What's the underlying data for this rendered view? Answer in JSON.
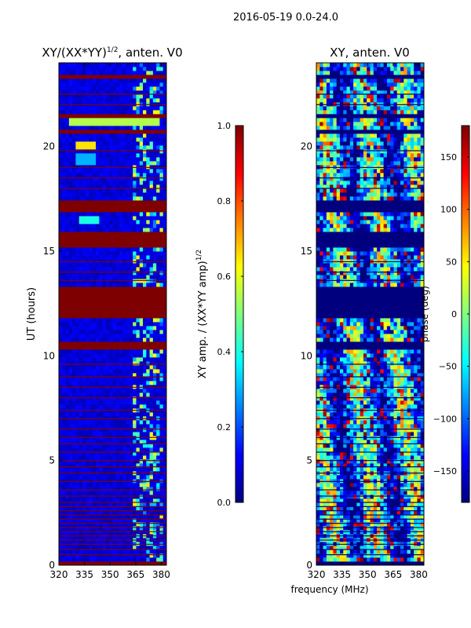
{
  "suptitle": "2016-05-19 0.0-24.0",
  "colormap": {
    "stops": [
      "#00007f",
      "#0000ff",
      "#007fff",
      "#00ffff",
      "#7fff7f",
      "#ffff00",
      "#ff7f00",
      "#ff0000",
      "#7f0000"
    ]
  },
  "chart_data": [
    {
      "type": "heatmap",
      "title": "XY/(XX*YY)",
      "title_sup": "1/2",
      "title_suffix": ", anten. V0",
      "xlabel": "",
      "ylabel": "UT (hours)",
      "xlim": [
        320,
        383
      ],
      "ylim": [
        0,
        24
      ],
      "xticks": [
        320,
        335,
        350,
        365,
        380
      ],
      "yticks": [
        0,
        5,
        10,
        15,
        20
      ],
      "colorbar": {
        "label": "XY amp. / (XX*YY amp)",
        "label_sup": "1/2",
        "range": [
          0.0,
          1.0
        ],
        "ticks": [
          "0.0",
          "0.2",
          "0.4",
          "0.6",
          "0.8",
          "1.0"
        ],
        "tick_values": [
          0.0,
          0.2,
          0.4,
          0.6,
          0.8,
          1.0
        ]
      },
      "dominant_value": 0.05,
      "flagged_value": 1.0,
      "flagged_time_ranges_hours": [
        [
          0.0,
          0.25
        ],
        [
          10.3,
          10.75
        ],
        [
          11.8,
          13.4
        ],
        [
          15.2,
          15.9
        ],
        [
          16.8,
          17.5
        ],
        [
          20.6,
          20.9
        ],
        [
          21.3,
          21.6
        ],
        [
          22.8,
          22.95
        ],
        [
          23.2,
          23.5
        ]
      ],
      "thin_flag_lines_hours": [
        0.5,
        0.75,
        1.0,
        1.2,
        1.4,
        1.6,
        1.8,
        2.0,
        2.2,
        2.4,
        2.6,
        2.8,
        3.0,
        3.3,
        3.6,
        4.0,
        4.4,
        4.7,
        5.0,
        5.4,
        5.8,
        6.1,
        6.5,
        7.0,
        7.4,
        8.0,
        8.5,
        9.0,
        9.6,
        13.6,
        14.0,
        14.5,
        18.0,
        18.5,
        19.0,
        19.8,
        22.0,
        22.5
      ],
      "bright_band_mhz": [
        363,
        381
      ],
      "bright_features": [
        {
          "t": 20.1,
          "f0": 330,
          "f1": 342,
          "value": 0.65
        },
        {
          "t": 19.4,
          "f0": 330,
          "f1": 342,
          "value": 0.3
        },
        {
          "t": 16.5,
          "f0": 332,
          "f1": 344,
          "value": 0.4
        },
        {
          "t": 21.2,
          "f0": 325,
          "f1": 380,
          "value": 0.55
        }
      ]
    },
    {
      "type": "heatmap",
      "title": "XY, anten. V0",
      "xlabel": "frequency (MHz)",
      "ylabel": "",
      "xlim": [
        320,
        383
      ],
      "ylim": [
        0,
        24
      ],
      "xticks": [
        320,
        335,
        350,
        365,
        380
      ],
      "yticks": [
        0,
        5,
        10,
        15,
        20
      ],
      "colorbar": {
        "label": "phase (deg)",
        "range": [
          -180,
          180
        ],
        "ticks": [
          "−150",
          "−100",
          "−50",
          "0",
          "50",
          "100",
          "150"
        ],
        "tick_values": [
          -150,
          -100,
          -50,
          0,
          50,
          100,
          150
        ]
      },
      "flagged_value": -180,
      "flagged_time_ranges_hours": [
        [
          0.0,
          0.25
        ],
        [
          10.3,
          10.75
        ],
        [
          11.8,
          13.4
        ],
        [
          15.2,
          15.9
        ],
        [
          16.8,
          17.5
        ],
        [
          20.6,
          20.9
        ],
        [
          21.3,
          21.6
        ],
        [
          22.8,
          22.95
        ],
        [
          23.2,
          23.5
        ]
      ],
      "thin_flag_lines_hours": [
        0.5,
        0.75,
        1.0,
        1.2,
        1.4,
        1.6,
        1.8,
        2.0,
        2.2,
        2.4,
        2.6,
        2.8,
        3.0,
        3.3,
        3.6,
        4.0,
        4.4,
        4.7,
        5.0,
        5.4,
        5.8,
        6.1,
        6.5,
        7.0,
        7.4,
        8.0,
        8.5,
        9.0,
        9.6,
        13.6,
        14.0,
        14.5,
        18.0,
        18.5,
        19.0,
        19.8,
        22.0,
        22.5
      ]
    }
  ]
}
